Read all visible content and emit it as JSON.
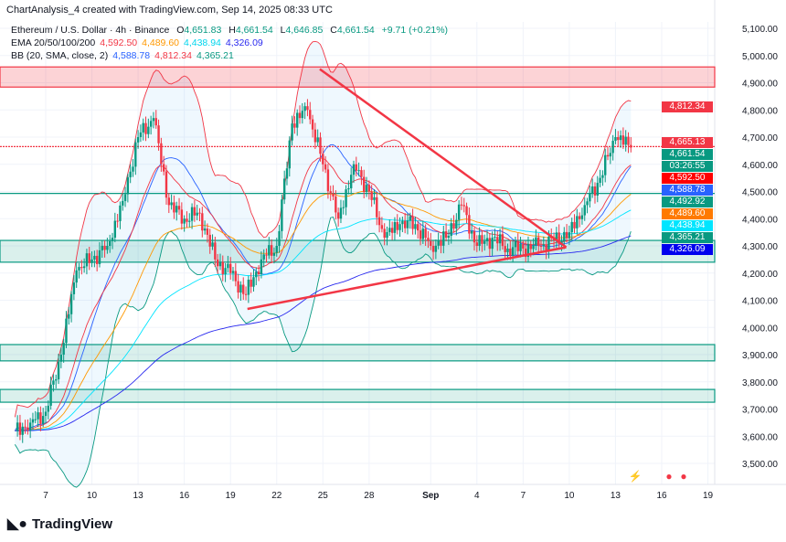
{
  "header": {
    "title": "ChartAnalysis_4 created with TradingView.com, Sep 14, 2025 08:33 UTC"
  },
  "legend": {
    "symbol": "Ethereum / U.S. Dollar · 4h · Binance",
    "o_label": "O",
    "o": "4,651.83",
    "h_label": "H",
    "h": "4,661.54",
    "l_label": "L",
    "l": "4,646.85",
    "c_label": "C",
    "c": "4,661.54",
    "change": "+9.71 (+0.21%)",
    "ema_label": "EMA 20/50/100/200",
    "ema": [
      "4,592.50",
      "4,489.60",
      "4,438.94",
      "4,326.09"
    ],
    "bb_label": "BB (20, SMA, close, 2)",
    "bb": [
      "4,588.78",
      "4,812.34",
      "4,365.21"
    ]
  },
  "colors": {
    "up": "#089981",
    "down": "#f23645",
    "ema20": "#f23645",
    "ema50": "#ff9800",
    "ema100": "#00e5ff",
    "ema200": "#2a2aef",
    "bb_basis": "#2962ff",
    "bb_upper": "#f23645",
    "bb_lower": "#089981",
    "zone_red": "#f23645",
    "zone_green": "#089981"
  },
  "price_labels": [
    {
      "text": "4,812.34",
      "price": 4812.34,
      "color": "#f23645"
    },
    {
      "text": "4,665.13",
      "price": 4680,
      "color": "#f23645"
    },
    {
      "text": "4,661.54",
      "price": 4661.54,
      "color": "#089981"
    },
    {
      "text": "03:26:55",
      "price": 4630,
      "color": "#089981"
    },
    {
      "text": "4,592.50",
      "price": 4596,
      "color": "#ff0000"
    },
    {
      "text": "4,588.78",
      "price": 4561,
      "color": "#2962ff"
    },
    {
      "text": "4,492.92",
      "price": 4492.92,
      "color": "#089981"
    },
    {
      "text": "4,489.60",
      "price": 4455,
      "color": "#ff7a00"
    },
    {
      "text": "4,438.94",
      "price": 4415,
      "color": "#00e5ff"
    },
    {
      "text": "4,365.21",
      "price": 4365.21,
      "color": "#089981"
    },
    {
      "text": "4,326.09",
      "price": 4326.09,
      "color": "#0000ee"
    }
  ],
  "chart_data": {
    "type": "candlestick",
    "x_ticks": [
      "7",
      "10",
      "13",
      "16",
      "19",
      "22",
      "25",
      "28",
      "Sep",
      "4",
      "7",
      "10",
      "13",
      "16",
      "19"
    ],
    "x_tick_days": [
      7,
      10,
      13,
      16,
      19,
      22,
      25,
      28,
      32,
      35,
      38,
      41,
      44,
      47,
      50
    ],
    "y_ticks": [
      "5,100.00",
      "5,000.00",
      "4,900.00",
      "4,800.00",
      "4,700.00",
      "4,600.00",
      "4,500.00",
      "4,400.00",
      "4,300.00",
      "4,200.00",
      "4,100.00",
      "4,000.00",
      "3,900.00",
      "3,800.00",
      "3,700.00",
      "3,600.00",
      "3,500.00"
    ],
    "ylim": [
      3450,
      5120
    ],
    "xlim_days": [
      4.5,
      51
    ],
    "daily_closes": {
      "days": [
        5,
        6,
        7,
        8,
        9,
        10,
        11,
        12,
        13,
        14,
        15,
        16,
        17,
        18,
        19,
        20,
        21,
        22,
        23,
        24,
        25,
        26,
        27,
        28,
        29,
        30,
        31,
        32,
        33,
        34,
        35,
        36,
        37,
        38,
        39,
        40,
        41,
        42,
        43,
        44,
        45
      ],
      "values": [
        3620,
        3650,
        3690,
        3900,
        4210,
        4250,
        4300,
        4465,
        4700,
        4770,
        4450,
        4400,
        4420,
        4250,
        4200,
        4120,
        4250,
        4300,
        4750,
        4800,
        4600,
        4400,
        4600,
        4500,
        4330,
        4380,
        4380,
        4300,
        4330,
        4450,
        4300,
        4330,
        4290,
        4290,
        4300,
        4320,
        4350,
        4450,
        4550,
        4700,
        4661.54
      ]
    },
    "zones": [
      {
        "type": "resistance",
        "from": 4884,
        "to": 4958
      },
      {
        "type": "support",
        "from": 4240,
        "to": 4320
      },
      {
        "type": "support",
        "from": 3877,
        "to": 3937
      },
      {
        "type": "support",
        "from": 3725,
        "to": 3772
      }
    ],
    "lines": [
      {
        "price": 4665.13,
        "style": "dotted",
        "color": "#f23645"
      },
      {
        "price": 4492.92,
        "style": "solid",
        "color": "#089981"
      }
    ],
    "triangle": {
      "upper": [
        [
          24.8,
          4950
        ],
        [
          40.8,
          4295
        ]
      ],
      "lower": [
        [
          20.1,
          4068
        ],
        [
          40.8,
          4295
        ]
      ]
    }
  },
  "footer": {
    "logo": "TradingView"
  }
}
